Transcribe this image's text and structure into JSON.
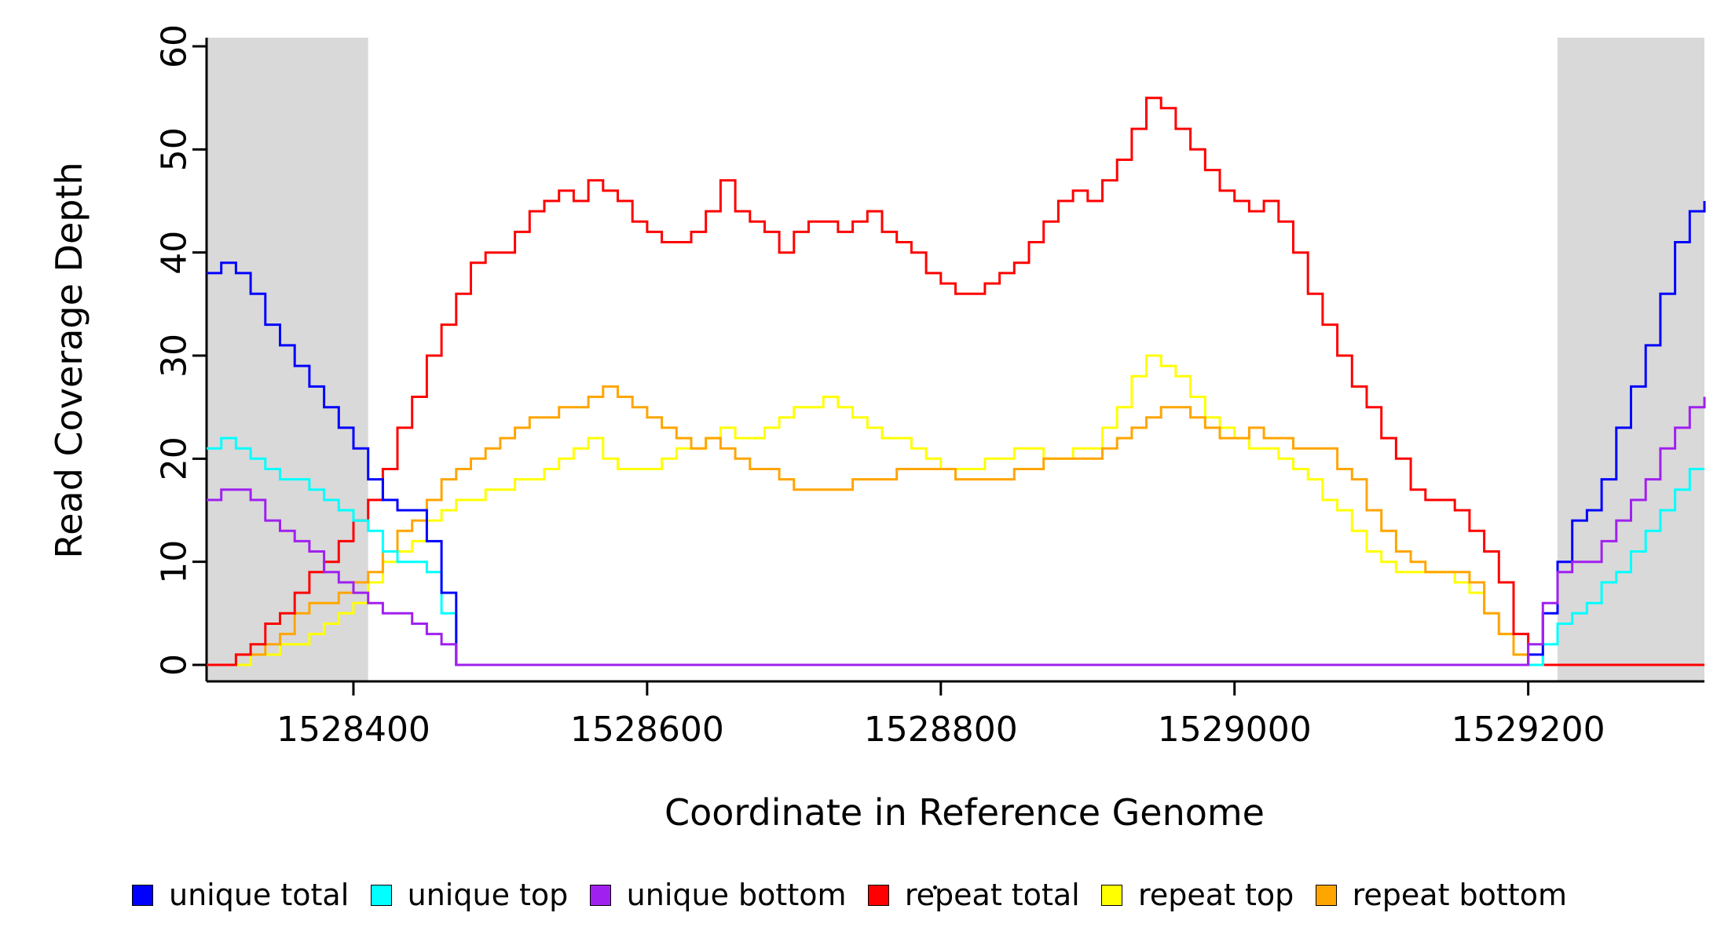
{
  "figure": {
    "background": "#ffffff",
    "axis_color": "#000000",
    "shade_color": "#d9d9d9",
    "stray_mark": "."
  },
  "chart_data": {
    "type": "line",
    "line_style": "step",
    "title": "",
    "xlabel": "Coordinate in Reference Genome",
    "ylabel": "Read Coverage Depth",
    "xlim": [
      1528300,
      1529320
    ],
    "ylim": [
      0,
      60
    ],
    "x_ticks": [
      1528400,
      1528600,
      1528800,
      1529000,
      1529200
    ],
    "y_ticks": [
      0,
      10,
      20,
      30,
      40,
      50,
      60
    ],
    "grid": false,
    "legend_position": "bottom",
    "x_start": 1528300,
    "x_step": 10,
    "shaded_regions": [
      {
        "x0": 1528300,
        "x1": 1528410,
        "color": "#d9d9d9"
      },
      {
        "x0": 1529220,
        "x1": 1529320,
        "color": "#d9d9d9"
      }
    ],
    "series": [
      {
        "name": "unique total",
        "color": "#0000FF",
        "values": [
          38,
          39,
          38,
          36,
          33,
          31,
          29,
          27,
          25,
          23,
          21,
          18,
          16,
          15,
          15,
          12,
          7,
          0,
          0,
          0,
          0,
          0,
          0,
          0,
          0,
          0,
          0,
          0,
          0,
          0,
          0,
          0,
          0,
          0,
          0,
          0,
          0,
          0,
          0,
          0,
          0,
          0,
          0,
          0,
          0,
          0,
          0,
          0,
          0,
          0,
          0,
          0,
          0,
          0,
          0,
          0,
          0,
          0,
          0,
          0,
          0,
          0,
          0,
          0,
          0,
          0,
          0,
          0,
          0,
          0,
          0,
          0,
          0,
          0,
          0,
          0,
          0,
          0,
          0,
          0,
          0,
          0,
          0,
          0,
          0,
          0,
          0,
          0,
          0,
          0,
          1,
          5,
          10,
          14,
          15,
          18,
          23,
          27,
          31,
          36,
          41,
          44,
          45
        ]
      },
      {
        "name": "unique top",
        "color": "#00FFFF",
        "values": [
          21,
          22,
          21,
          20,
          19,
          18,
          18,
          17,
          16,
          15,
          14,
          13,
          11,
          10,
          10,
          9,
          5,
          0,
          0,
          0,
          0,
          0,
          0,
          0,
          0,
          0,
          0,
          0,
          0,
          0,
          0,
          0,
          0,
          0,
          0,
          0,
          0,
          0,
          0,
          0,
          0,
          0,
          0,
          0,
          0,
          0,
          0,
          0,
          0,
          0,
          0,
          0,
          0,
          0,
          0,
          0,
          0,
          0,
          0,
          0,
          0,
          0,
          0,
          0,
          0,
          0,
          0,
          0,
          0,
          0,
          0,
          0,
          0,
          0,
          0,
          0,
          0,
          0,
          0,
          0,
          0,
          0,
          0,
          0,
          0,
          0,
          0,
          0,
          0,
          0,
          0,
          2,
          4,
          5,
          6,
          8,
          9,
          11,
          13,
          15,
          17,
          19,
          19
        ]
      },
      {
        "name": "unique bottom",
        "color": "#A020F0",
        "values": [
          16,
          17,
          17,
          16,
          14,
          13,
          12,
          11,
          9,
          8,
          7,
          6,
          5,
          5,
          4,
          3,
          2,
          0,
          0,
          0,
          0,
          0,
          0,
          0,
          0,
          0,
          0,
          0,
          0,
          0,
          0,
          0,
          0,
          0,
          0,
          0,
          0,
          0,
          0,
          0,
          0,
          0,
          0,
          0,
          0,
          0,
          0,
          0,
          0,
          0,
          0,
          0,
          0,
          0,
          0,
          0,
          0,
          0,
          0,
          0,
          0,
          0,
          0,
          0,
          0,
          0,
          0,
          0,
          0,
          0,
          0,
          0,
          0,
          0,
          0,
          0,
          0,
          0,
          0,
          0,
          0,
          0,
          0,
          0,
          0,
          0,
          0,
          0,
          0,
          0,
          2,
          6,
          9,
          10,
          10,
          12,
          14,
          16,
          18,
          21,
          23,
          25,
          26
        ]
      },
      {
        "name": "repeat total",
        "color": "#FF0000",
        "values": [
          0,
          0,
          1,
          2,
          4,
          5,
          7,
          9,
          10,
          12,
          14,
          16,
          19,
          23,
          26,
          30,
          33,
          36,
          39,
          40,
          40,
          42,
          44,
          45,
          46,
          45,
          47,
          46,
          45,
          43,
          42,
          41,
          41,
          42,
          44,
          47,
          44,
          43,
          42,
          40,
          42,
          43,
          43,
          42,
          43,
          44,
          42,
          41,
          40,
          38,
          37,
          36,
          36,
          37,
          38,
          39,
          41,
          43,
          45,
          46,
          45,
          47,
          49,
          52,
          55,
          54,
          52,
          50,
          48,
          46,
          45,
          44,
          45,
          43,
          40,
          36,
          33,
          30,
          27,
          25,
          22,
          20,
          17,
          16,
          16,
          15,
          13,
          11,
          8,
          3,
          0,
          0,
          0,
          0,
          0,
          0,
          0,
          0,
          0,
          0,
          0,
          0,
          0
        ]
      },
      {
        "name": "repeat top",
        "color": "#FFFF00",
        "values": [
          0,
          0,
          0,
          1,
          1,
          2,
          2,
          3,
          4,
          5,
          6,
          8,
          10,
          11,
          12,
          14,
          15,
          16,
          16,
          17,
          17,
          18,
          18,
          19,
          20,
          21,
          22,
          20,
          19,
          19,
          19,
          20,
          21,
          21,
          22,
          23,
          22,
          22,
          23,
          24,
          25,
          25,
          26,
          25,
          24,
          23,
          22,
          22,
          21,
          20,
          19,
          19,
          19,
          20,
          20,
          21,
          21,
          20,
          20,
          21,
          21,
          23,
          25,
          28,
          30,
          29,
          28,
          26,
          24,
          23,
          22,
          21,
          21,
          20,
          19,
          18,
          16,
          15,
          13,
          11,
          10,
          9,
          9,
          9,
          9,
          8,
          7,
          5,
          3,
          1,
          0,
          0,
          0,
          0,
          0,
          0,
          0,
          0,
          0,
          0,
          0,
          0,
          0
        ]
      },
      {
        "name": "repeat bottom",
        "color": "#FFA500",
        "values": [
          0,
          0,
          1,
          1,
          2,
          3,
          5,
          6,
          6,
          7,
          8,
          9,
          11,
          13,
          14,
          16,
          18,
          19,
          20,
          21,
          22,
          23,
          24,
          24,
          25,
          25,
          26,
          27,
          26,
          25,
          24,
          23,
          22,
          21,
          22,
          21,
          20,
          19,
          19,
          18,
          17,
          17,
          17,
          17,
          18,
          18,
          18,
          19,
          19,
          19,
          19,
          18,
          18,
          18,
          18,
          19,
          19,
          20,
          20,
          20,
          20,
          21,
          22,
          23,
          24,
          25,
          25,
          24,
          23,
          22,
          22,
          23,
          22,
          22,
          21,
          21,
          21,
          19,
          18,
          15,
          13,
          11,
          10,
          9,
          9,
          9,
          8,
          5,
          3,
          1,
          0,
          0,
          0,
          0,
          0,
          0,
          0,
          0,
          0,
          0,
          0,
          0,
          0
        ]
      }
    ]
  }
}
